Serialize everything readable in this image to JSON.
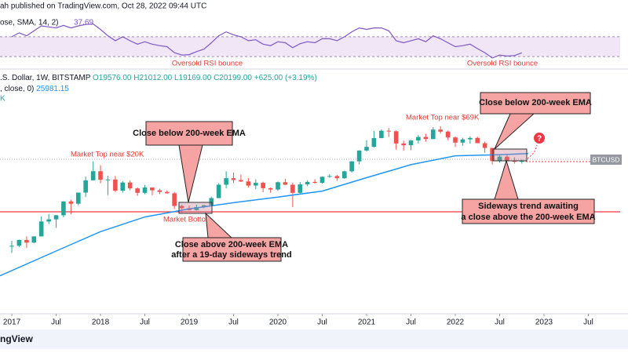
{
  "header": {
    "publisher": "ah published on TradingView.com, Oct 28, 2022 09:44 UTC"
  },
  "chart_data": {
    "type": "candlestick",
    "log_scale": true,
    "legend": {
      "symbol": ".S. Dollar, 1W, BITSTAMP",
      "open": "O19576.00",
      "high": "H21012.00",
      "low": "L19169.00",
      "close": "C20199.00",
      "change": "+625.00 (+3.19%)",
      "ema_label": ", close, 0)",
      "ema_value": "25981.15",
      "extra": "K"
    },
    "xlim": [
      2016.867,
      2023.947
    ],
    "xticks": [
      {
        "value": 2017,
        "label": "2017"
      },
      {
        "value": 2017.5,
        "label": "Jul"
      },
      {
        "value": 2018,
        "label": "2018"
      },
      {
        "value": 2018.5,
        "label": "Jul"
      },
      {
        "value": 2019,
        "label": "2019"
      },
      {
        "value": 2019.5,
        "label": "Jul"
      },
      {
        "value": 2020,
        "label": "2020"
      },
      {
        "value": 2020.5,
        "label": "Jul"
      },
      {
        "value": 2021,
        "label": "2021"
      },
      {
        "value": 2021.5,
        "label": "Jul"
      },
      {
        "value": 2022,
        "label": "2022"
      },
      {
        "value": 2022.5,
        "label": "Jul"
      },
      {
        "value": 2023,
        "label": "2023"
      },
      {
        "value": 2023.5,
        "label": "Jul"
      }
    ],
    "ylim": [
      85,
      580000
    ],
    "up_color": "#26a69a",
    "down_color": "#ef5350",
    "candles": {
      "x": [
        2017,
        2017.083,
        2017.167,
        2017.25,
        2017.333,
        2017.417,
        2017.5,
        2017.583,
        2017.667,
        2017.75,
        2017.833,
        2017.917,
        2018,
        2018.083,
        2018.167,
        2018.25,
        2018.333,
        2018.417,
        2018.5,
        2018.583,
        2018.667,
        2018.75,
        2018.833,
        2018.917,
        2019,
        2019.083,
        2019.167,
        2019.25,
        2019.333,
        2019.417,
        2019.5,
        2019.583,
        2019.667,
        2019.75,
        2019.833,
        2019.917,
        2020,
        2020.083,
        2020.167,
        2020.25,
        2020.333,
        2020.417,
        2020.5,
        2020.583,
        2020.667,
        2020.75,
        2020.833,
        2020.917,
        2021,
        2021.083,
        2021.167,
        2021.25,
        2021.333,
        2021.417,
        2021.5,
        2021.583,
        2021.667,
        2021.75,
        2021.833,
        2021.917,
        2022,
        2022.083,
        2022.167,
        2022.25,
        2022.333,
        2022.417,
        2022.5,
        2022.583,
        2022.667,
        2022.75
      ],
      "open": [
        960,
        965,
        1190,
        1080,
        1350,
        2300,
        2480,
        2870,
        4700,
        4340,
        6450,
        10000,
        13850,
        10200,
        10300,
        6900,
        9250,
        7500,
        6400,
        7750,
        7000,
        6600,
        6300,
        4000,
        3700,
        3450,
        3850,
        4100,
        5300,
        8550,
        10800,
        10100,
        9600,
        8300,
        9150,
        7550,
        7200,
        9350,
        8550,
        6400,
        8650,
        9450,
        9150,
        11350,
        11650,
        10780,
        13800,
        19700,
        29000,
        33100,
        45200,
        58800,
        57700,
        37300,
        35000,
        41500,
        47100,
        43800,
        61300,
        57000,
        46300,
        38500,
        43200,
        45500,
        37700,
        31800,
        19900,
        23300,
        20050,
        19400
      ],
      "high": [
        1150,
        1200,
        1350,
        1350,
        2760,
        3000,
        2900,
        4750,
        5000,
        6450,
        11400,
        19700,
        17200,
        11800,
        11700,
        9700,
        10000,
        7800,
        8500,
        7750,
        7400,
        7000,
        6600,
        4200,
        4100,
        4200,
        4150,
        5600,
        9000,
        13850,
        13200,
        12300,
        10900,
        10400,
        9500,
        7750,
        9600,
        10500,
        9200,
        9450,
        10050,
        10400,
        11450,
        12450,
        12100,
        14100,
        19850,
        29300,
        41950,
        58350,
        61800,
        64900,
        59500,
        41300,
        42300,
        50500,
        52900,
        67000,
        69000,
        59100,
        47900,
        45800,
        48200,
        47400,
        40000,
        31900,
        24600,
        25200,
        22800,
        21012
      ],
      "low": [
        750,
        920,
        890,
        1060,
        1350,
        2100,
        1830,
        2670,
        2980,
        4100,
        5500,
        9900,
        9000,
        5900,
        6600,
        6450,
        7000,
        5750,
        6100,
        5900,
        6100,
        6200,
        3600,
        3150,
        3400,
        3400,
        3700,
        4050,
        5300,
        7500,
        9100,
        9400,
        7700,
        7300,
        6550,
        6400,
        6850,
        8450,
        3850,
        6150,
        8100,
        8900,
        8950,
        11000,
        9850,
        10550,
        13200,
        17600,
        28100,
        32300,
        45000,
        47000,
        30000,
        28800,
        29300,
        37400,
        39600,
        43300,
        53300,
        42000,
        33000,
        34300,
        37200,
        37700,
        26700,
        17600,
        18800,
        19600,
        18150,
        18200
      ],
      "close": [
        965,
        1190,
        1080,
        1350,
        2300,
        2480,
        2870,
        4700,
        4340,
        6450,
        10000,
        13850,
        10200,
        10300,
        6900,
        9250,
        7500,
        6400,
        7750,
        7000,
        6600,
        6300,
        4000,
        3700,
        3450,
        3850,
        4100,
        5300,
        8550,
        10800,
        10100,
        9600,
        8300,
        9150,
        7550,
        7200,
        9350,
        8550,
        6400,
        8650,
        9450,
        9150,
        11350,
        11650,
        10780,
        13800,
        19700,
        29000,
        33100,
        45200,
        58800,
        57700,
        37300,
        35000,
        41500,
        47100,
        43800,
        61300,
        57000,
        46300,
        38500,
        43200,
        45500,
        37700,
        31800,
        19900,
        23300,
        20050,
        19400,
        20199
      ]
    },
    "ema": {
      "color": "#2196f3",
      "x": [
        2016.867,
        2017.5,
        2018,
        2018.5,
        2019,
        2019.5,
        2020,
        2020.5,
        2021,
        2021.5,
        2022,
        2022.5,
        2022.82
      ],
      "values": [
        330,
        800,
        1600,
        2700,
        3600,
        4500,
        5500,
        6800,
        11000,
        17500,
        24000,
        25000,
        25981
      ]
    },
    "rsi": {
      "label": "ose, SMA, 14, 2)",
      "value": 37.69,
      "color": "#7e57c2",
      "ylim": [
        0,
        100
      ],
      "bands": [
        30,
        70
      ],
      "values": [
        70,
        78,
        72,
        82,
        92,
        90,
        88,
        93,
        88,
        92,
        95,
        96,
        85,
        72,
        62,
        70,
        62,
        55,
        60,
        55,
        52,
        50,
        38,
        33,
        34,
        40,
        45,
        58,
        72,
        80,
        74,
        70,
        62,
        64,
        55,
        52,
        60,
        58,
        48,
        56,
        60,
        58,
        66,
        66,
        62,
        70,
        80,
        88,
        85,
        88,
        88,
        82,
        62,
        58,
        62,
        66,
        60,
        72,
        66,
        58,
        50,
        52,
        55,
        46,
        38,
        27,
        33,
        31,
        32,
        37.69
      ]
    },
    "symbol_tag": "BTCUSD",
    "annotations": {
      "rsi_bounce_1": "Oversold RSI bounce",
      "rsi_bounce_2": "Oversold RSI bounce",
      "top_20k": "Market Top near $20K",
      "top_69k": "Market Top near $69K",
      "bottom": "Market Bottom",
      "close_below_1": "Close below 200-week EMA",
      "close_below_2": "Close below 200-week EMA",
      "close_above": [
        "Close above 200-week EMA",
        "after a 19-day sideways trend"
      ],
      "sideways": [
        "Sideways trend awaiting",
        "a close above the 200-week EMA"
      ],
      "question": "?"
    }
  },
  "footer": "ngView"
}
